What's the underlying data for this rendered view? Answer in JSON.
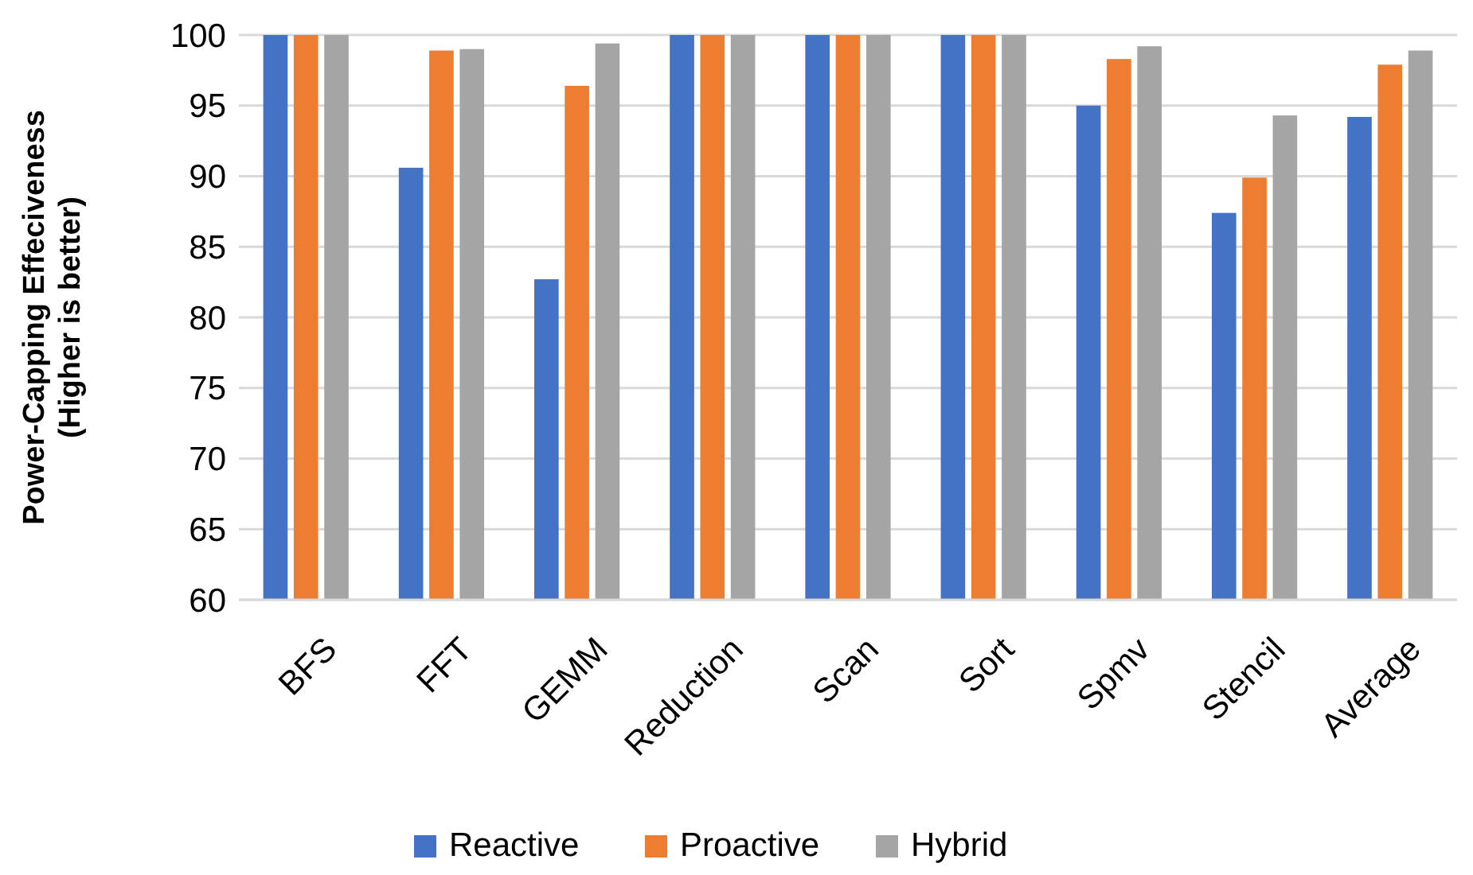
{
  "chart_data": {
    "type": "bar",
    "ylabel": "Power-Capping Effeciveness\n(Higher is better)",
    "categories": [
      "BFS",
      "FFT",
      "GEMM",
      "Reduction",
      "Scan",
      "Sort",
      "Spmv",
      "Stencil",
      "Average"
    ],
    "series": [
      {
        "name": "Reactive",
        "color": "#4472c4",
        "values": [
          100,
          90.6,
          82.7,
          100,
          100,
          100,
          95.0,
          87.4,
          94.2
        ]
      },
      {
        "name": "Proactive",
        "color": "#ed7d31",
        "values": [
          100,
          98.9,
          96.4,
          100,
          100,
          100,
          98.3,
          89.9,
          97.9
        ]
      },
      {
        "name": "Hybrid",
        "color": "#a5a5a5",
        "values": [
          100,
          99.0,
          99.4,
          100,
          100,
          100,
          99.2,
          94.3,
          98.9
        ]
      }
    ],
    "ylim": [
      60,
      100
    ],
    "yticks": [
      60,
      65,
      70,
      75,
      80,
      85,
      90,
      95,
      100
    ],
    "grid": "y",
    "legend": "bottom"
  }
}
